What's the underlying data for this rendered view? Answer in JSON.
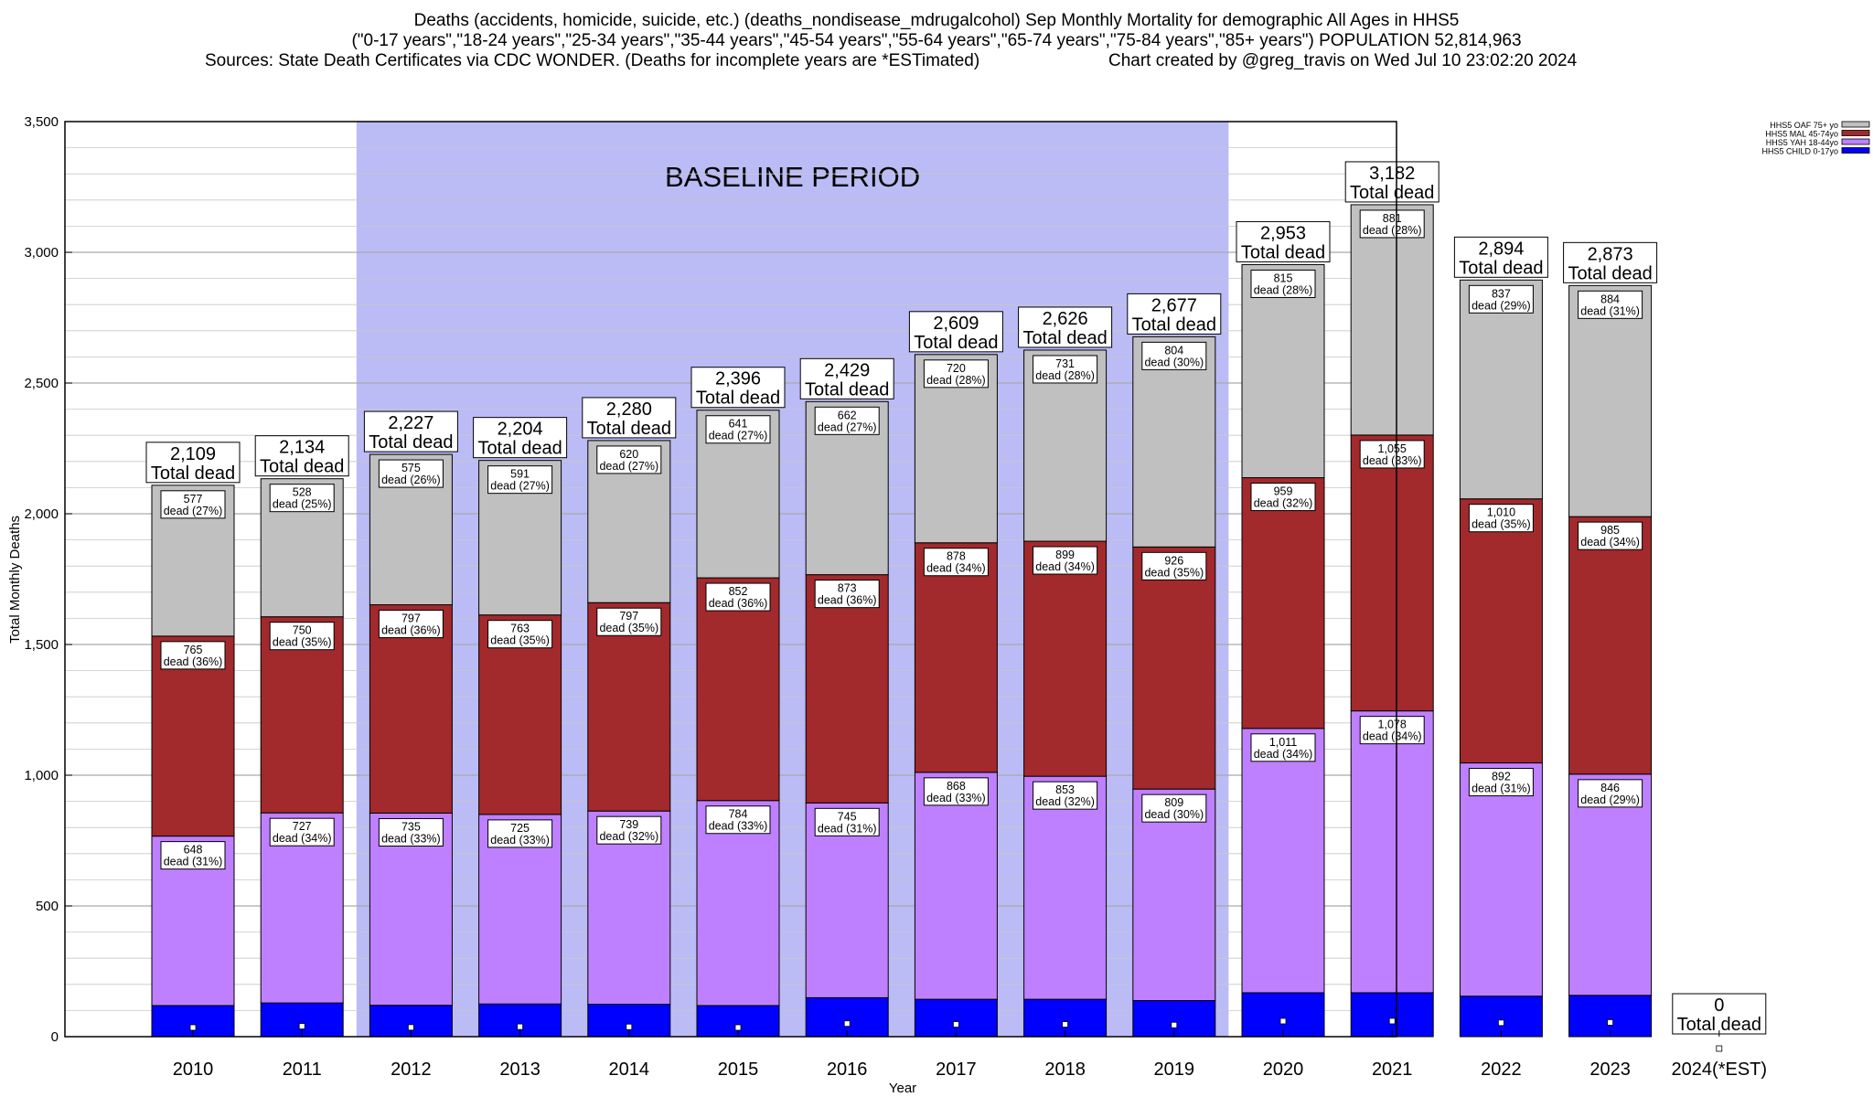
{
  "header": {
    "line1": "Deaths (accidents, homicide, suicide, etc.) (deaths_nondisease_mdrugalcohol) Sep Monthly Mortality for demographic All Ages in HHS5",
    "line2": "(\"0-17 years\",\"18-24 years\",\"25-34 years\",\"35-44 years\",\"45-54 years\",\"55-64 years\",\"65-74 years\",\"75-84 years\",\"85+ years\") POPULATION 52,814,963",
    "line3_left": "Sources: State Death Certificates via CDC WONDER. (Deaths for incomplete years are *ESTimated)",
    "line3_right": "Chart created by @greg_travis on Wed Jul 10 23:02:20 2024"
  },
  "chart_data": {
    "type": "bar",
    "stacked": true,
    "xlabel": "Year",
    "ylabel": "Total Monthly Deaths",
    "ylim": [
      0,
      3500
    ],
    "yticks": [
      0,
      500,
      1000,
      1500,
      2000,
      2500,
      3000,
      3500
    ],
    "ytick_labels": [
      "0",
      "500",
      "1,000",
      "1,500",
      "2,000",
      "2,500",
      "3,000",
      "3,500"
    ],
    "grid": "horizontal",
    "legend_position": "top-right",
    "categories": [
      "2010",
      "2011",
      "2012",
      "2013",
      "2014",
      "2015",
      "2016",
      "2017",
      "2018",
      "2019",
      "2020",
      "2021",
      "2022",
      "2023",
      "2024(*EST)"
    ],
    "series": [
      {
        "name": "HHS5 CHILD 0-17yo",
        "color": "#0000ff",
        "values": [
          119,
          129,
          120,
          125,
          124,
          119,
          149,
          143,
          143,
          138,
          168,
          168,
          155,
          158,
          0
        ]
      },
      {
        "name": "HHS5 YAH 18-44yo",
        "color": "#bf80ff",
        "values": [
          648,
          727,
          735,
          725,
          739,
          784,
          745,
          868,
          853,
          809,
          1011,
          1078,
          892,
          846,
          0
        ],
        "labels": [
          "648\ndead (31%)",
          "727\ndead (34%)",
          "735\ndead (33%)",
          "725\ndead (33%)",
          "739\ndead (32%)",
          "784\ndead (33%)",
          "745\ndead (31%)",
          "868\ndead (33%)",
          "853\ndead (32%)",
          "809\ndead (30%)",
          "1,011\ndead (34%)",
          "1,078\ndead (34%)",
          "892\ndead (31%)",
          "846\ndead (29%)",
          ""
        ]
      },
      {
        "name": "HHS5 MAL 45-74yo",
        "color": "#a2292c",
        "values": [
          765,
          750,
          797,
          763,
          797,
          852,
          873,
          878,
          899,
          926,
          959,
          1055,
          1010,
          985,
          0
        ],
        "labels": [
          "765\ndead (36%)",
          "750\ndead (35%)",
          "797\ndead (36%)",
          "763\ndead (35%)",
          "797\ndead (35%)",
          "852\ndead (36%)",
          "873\ndead (36%)",
          "878\ndead (34%)",
          "899\ndead (34%)",
          "926\ndead (35%)",
          "959\ndead (32%)",
          "1,055\ndead (33%)",
          "1,010\ndead (35%)",
          "985\ndead (34%)",
          ""
        ]
      },
      {
        "name": "HHS5 OAF 75+ yo",
        "color": "#c0c0c0",
        "values": [
          577,
          528,
          575,
          591,
          620,
          641,
          662,
          720,
          731,
          804,
          815,
          881,
          837,
          884,
          0
        ],
        "labels": [
          "577\ndead (27%)",
          "528\ndead (25%)",
          "575\ndead (26%)",
          "591\ndead (27%)",
          "620\ndead (27%)",
          "641\ndead (27%)",
          "662\ndead (27%)",
          "720\ndead (28%)",
          "731\ndead (28%)",
          "804\ndead (30%)",
          "815\ndead (28%)",
          "881\ndead (28%)",
          "837\ndead (29%)",
          "884\ndead (31%)",
          ""
        ]
      }
    ],
    "totals": [
      2109,
      2134,
      2227,
      2204,
      2280,
      2396,
      2429,
      2609,
      2626,
      2677,
      2953,
      3182,
      2894,
      2873,
      0
    ],
    "total_labels": [
      "2,109",
      "2,134",
      "2,227",
      "2,204",
      "2,280",
      "2,396",
      "2,429",
      "2,609",
      "2,626",
      "2,677",
      "2,953",
      "3,182",
      "2,894",
      "2,873",
      "0"
    ],
    "total_suffix": "Total dead",
    "baseline": {
      "label": "BASELINE PERIOD",
      "start": "2012",
      "end": "2019",
      "color": "#bbbbf5"
    }
  },
  "colors": {
    "grid": "#c8c8c8",
    "border": "#000000",
    "label_box": "#ffffff"
  }
}
